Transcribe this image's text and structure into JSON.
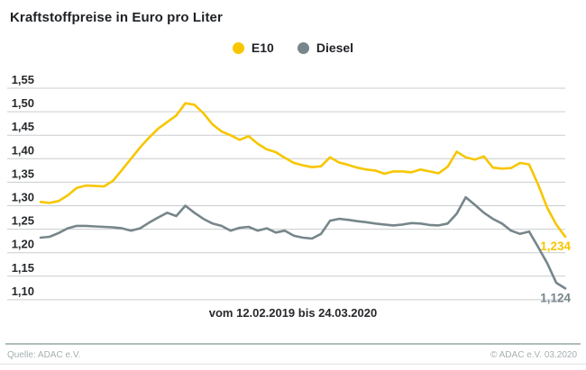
{
  "header": {
    "title": "Kraftstoffpreise in Euro pro Liter"
  },
  "legend": [
    {
      "label": "E10",
      "color": "#F7C600"
    },
    {
      "label": "Diesel",
      "color": "#76868A"
    }
  ],
  "chart_data": {
    "type": "line",
    "title": "Kraftstoffpreise in Euro pro Liter",
    "x_label": "vom 12.02.2019 bis 24.03.2020",
    "y_unit": "Euro pro Liter",
    "ylim": [
      1.1,
      1.55
    ],
    "y_tick_step": 0.05,
    "y_tick_labels": [
      "1,55",
      "1,50",
      "1,45",
      "1,40",
      "1,35",
      "1,30",
      "1,25",
      "1,20",
      "1,15",
      "1,10"
    ],
    "grid": true,
    "legend_position": "top-center",
    "series": [
      {
        "name": "E10",
        "color": "#F7C600",
        "end_label": "1,234",
        "values": [
          1.308,
          1.306,
          1.31,
          1.322,
          1.338,
          1.343,
          1.342,
          1.341,
          1.353,
          1.376,
          1.4,
          1.424,
          1.445,
          1.464,
          1.478,
          1.492,
          1.518,
          1.515,
          1.497,
          1.473,
          1.458,
          1.45,
          1.44,
          1.448,
          1.432,
          1.42,
          1.414,
          1.402,
          1.391,
          1.386,
          1.382,
          1.384,
          1.403,
          1.392,
          1.387,
          1.381,
          1.377,
          1.375,
          1.368,
          1.373,
          1.373,
          1.371,
          1.377,
          1.373,
          1.369,
          1.383,
          1.415,
          1.403,
          1.398,
          1.405,
          1.381,
          1.379,
          1.38,
          1.391,
          1.388,
          1.345,
          1.296,
          1.26,
          1.234
        ]
      },
      {
        "name": "Diesel",
        "color": "#76868A",
        "end_label": "1,124",
        "values": [
          1.232,
          1.234,
          1.242,
          1.252,
          1.257,
          1.257,
          1.256,
          1.255,
          1.254,
          1.252,
          1.247,
          1.252,
          1.264,
          1.275,
          1.285,
          1.278,
          1.3,
          1.285,
          1.272,
          1.262,
          1.257,
          1.247,
          1.253,
          1.255,
          1.247,
          1.252,
          1.243,
          1.247,
          1.236,
          1.232,
          1.23,
          1.24,
          1.268,
          1.272,
          1.27,
          1.267,
          1.265,
          1.262,
          1.26,
          1.258,
          1.26,
          1.263,
          1.262,
          1.259,
          1.258,
          1.262,
          1.283,
          1.318,
          1.302,
          1.285,
          1.272,
          1.262,
          1.247,
          1.24,
          1.245,
          1.212,
          1.178,
          1.136,
          1.124
        ]
      }
    ]
  },
  "footer": {
    "source": "Quelle: ADAC e.V.",
    "copyright": "© ADAC e.V.  03.2020"
  }
}
